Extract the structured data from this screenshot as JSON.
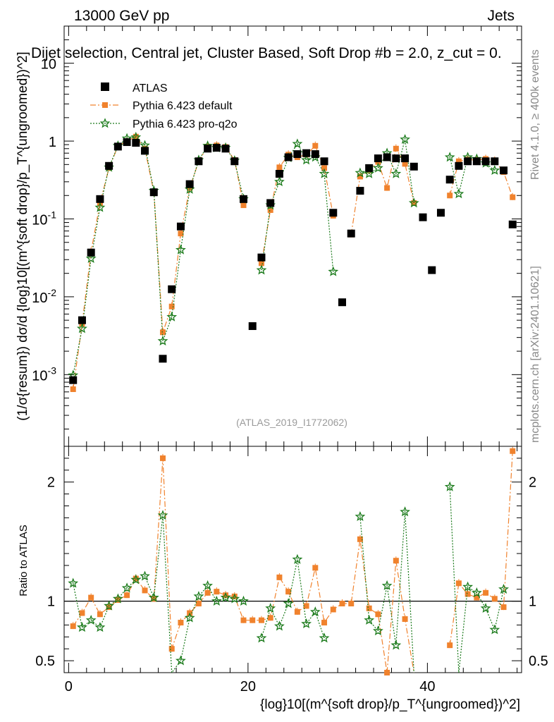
{
  "header": {
    "energy": "13000 GeV pp",
    "category": "Jets",
    "plot_title": "Dijet selection, Central jet, Cluster Based, Soft Drop #b = 2.0, z_cut = 0.",
    "side_rivet": "Rivet 4.1.0, ≥ 400k events",
    "side_mcplots": "mcplots.cern.ch [arXiv:2401.10621]",
    "analysis_id": "(ATLAS_2019_I1772062)"
  },
  "axes": {
    "xlabel": "{log}10[(m^{soft drop}/p_T^{ungroomed})^2]",
    "ylabel_main": "(1/σ{resum}) dσ/d {log}10[(m^{soft drop}/p_T^{ungroomed})^2]",
    "ylabel_ratio": "Ratio to ATLAS"
  },
  "legend": [
    {
      "name": "ATLAS",
      "color": "#000000",
      "marker": "square"
    },
    {
      "name": "Pythia 6.423 default",
      "color": "#f0822d",
      "marker": "square-dashdot"
    },
    {
      "name": "Pythia 6.423 pro-q2o",
      "color": "#1a7a1a",
      "marker": "star-dotted"
    }
  ],
  "chart_data": {
    "type": "scatter",
    "x": [
      0.5,
      1.5,
      2.5,
      3.5,
      4.5,
      5.5,
      6.5,
      7.5,
      8.5,
      9.5,
      10.5,
      11.5,
      12.5,
      13.5,
      14.5,
      15.5,
      16.5,
      17.5,
      18.5,
      19.5,
      20.5,
      21.5,
      22.5,
      23.5,
      24.5,
      25.5,
      26.5,
      27.5,
      28.5,
      29.5,
      30.5,
      31.5,
      32.5,
      33.5,
      34.5,
      35.5,
      36.5,
      37.5,
      38.5,
      39.5,
      40.5,
      41.5,
      42.5,
      43.5,
      44.5,
      45.5,
      46.5,
      47.5,
      48.5,
      49.5
    ],
    "xlim": [
      -0.5,
      50.5
    ],
    "main_ylim_log": [
      0.00012,
      30
    ],
    "ratio_ylim": [
      0.4,
      2.3
    ],
    "main_yticks": [
      "10^{-3}",
      "10^{-2}",
      "10^{-1}",
      "1",
      "10"
    ],
    "ratio_yticks": [
      "0.5",
      "1",
      "2"
    ],
    "xticks": [
      "0",
      "20",
      "40"
    ],
    "series": [
      {
        "name": "ATLAS",
        "values": [
          0.00085,
          0.005,
          0.037,
          0.18,
          0.48,
          0.85,
          0.97,
          0.95,
          0.75,
          0.22,
          0.0016,
          0.0125,
          0.08,
          0.28,
          0.55,
          0.8,
          0.82,
          0.8,
          0.55,
          0.18,
          0.0042,
          0.032,
          0.16,
          0.38,
          0.62,
          0.68,
          0.7,
          0.68,
          0.55,
          0.12,
          0.0085,
          0.065,
          0.23,
          0.45,
          0.6,
          0.62,
          0.6,
          0.6,
          0.47,
          0.105,
          0.022,
          0.12,
          0.32,
          0.48,
          0.55,
          0.55,
          0.55,
          0.55,
          0.42,
          0.085
        ]
      },
      {
        "name": "Pythia 6.423 default",
        "values": [
          0.00065,
          0.0045,
          0.038,
          0.16,
          0.45,
          0.86,
          1.0,
          1.14,
          0.8,
          0.22,
          0.0035,
          0.0075,
          0.065,
          0.25,
          0.55,
          0.85,
          0.88,
          0.84,
          0.57,
          0.15,
          null,
          0.027,
          0.13,
          0.46,
          0.67,
          0.62,
          0.67,
          0.87,
          0.45,
          0.11,
          null,
          0.063,
          0.35,
          0.42,
          0.54,
          0.25,
          0.8,
          0.51,
          0.16,
          null,
          null,
          null,
          0.2,
          0.55,
          0.58,
          0.57,
          0.59,
          0.56,
          0.4,
          0.19
        ]
      },
      {
        "name": "Pythia 6.423 pro-q2o",
        "values": [
          0.00098,
          0.0039,
          0.031,
          0.14,
          0.46,
          0.87,
          1.08,
          1.12,
          0.88,
          0.23,
          0.0027,
          0.0055,
          0.04,
          0.24,
          0.57,
          0.87,
          0.82,
          0.82,
          0.56,
          0.18,
          null,
          0.022,
          0.15,
          0.3,
          0.61,
          0.92,
          0.57,
          0.62,
          0.38,
          0.021,
          null,
          null,
          0.39,
          0.38,
          0.45,
          0.7,
          0.38,
          1.05,
          0.16,
          null,
          null,
          null,
          0.62,
          0.21,
          0.62,
          0.59,
          0.52,
          0.42,
          null,
          null
        ]
      }
    ],
    "ratio_series": [
      {
        "name": "Pythia 6.423 default",
        "values": [
          0.79,
          0.9,
          1.03,
          0.89,
          0.95,
          1.01,
          1.05,
          1.19,
          1.09,
          1.02,
          2.2,
          0.6,
          0.82,
          0.9,
          0.98,
          1.07,
          1.08,
          1.05,
          1.04,
          0.84,
          0.84,
          0.84,
          0.86,
          1.2,
          1.08,
          0.91,
          0.96,
          1.28,
          0.82,
          0.93,
          0.98,
          0.98,
          1.52,
          0.94,
          0.89,
          0.4,
          1.34,
          0.85,
          0.35,
          null,
          null,
          null,
          0.63,
          1.15,
          1.06,
          1.03,
          1.07,
          1.02,
          0.95,
          2.26
        ]
      },
      {
        "name": "Pythia 6.423 pro-q2o",
        "values": [
          1.15,
          0.78,
          0.84,
          0.78,
          0.96,
          1.02,
          1.11,
          1.18,
          1.21,
          1.03,
          1.72,
          0.38,
          0.5,
          0.86,
          1.04,
          1.13,
          1.0,
          1.03,
          1.02,
          1.0,
          null,
          0.69,
          0.94,
          0.79,
          0.98,
          1.35,
          0.81,
          0.91,
          0.69,
          null,
          null,
          null,
          1.71,
          0.84,
          0.75,
          1.13,
          0.63,
          1.75,
          0.34,
          null,
          null,
          null,
          1.96,
          0.38,
          1.12,
          1.07,
          0.94,
          0.76,
          1.1,
          null
        ]
      }
    ]
  }
}
